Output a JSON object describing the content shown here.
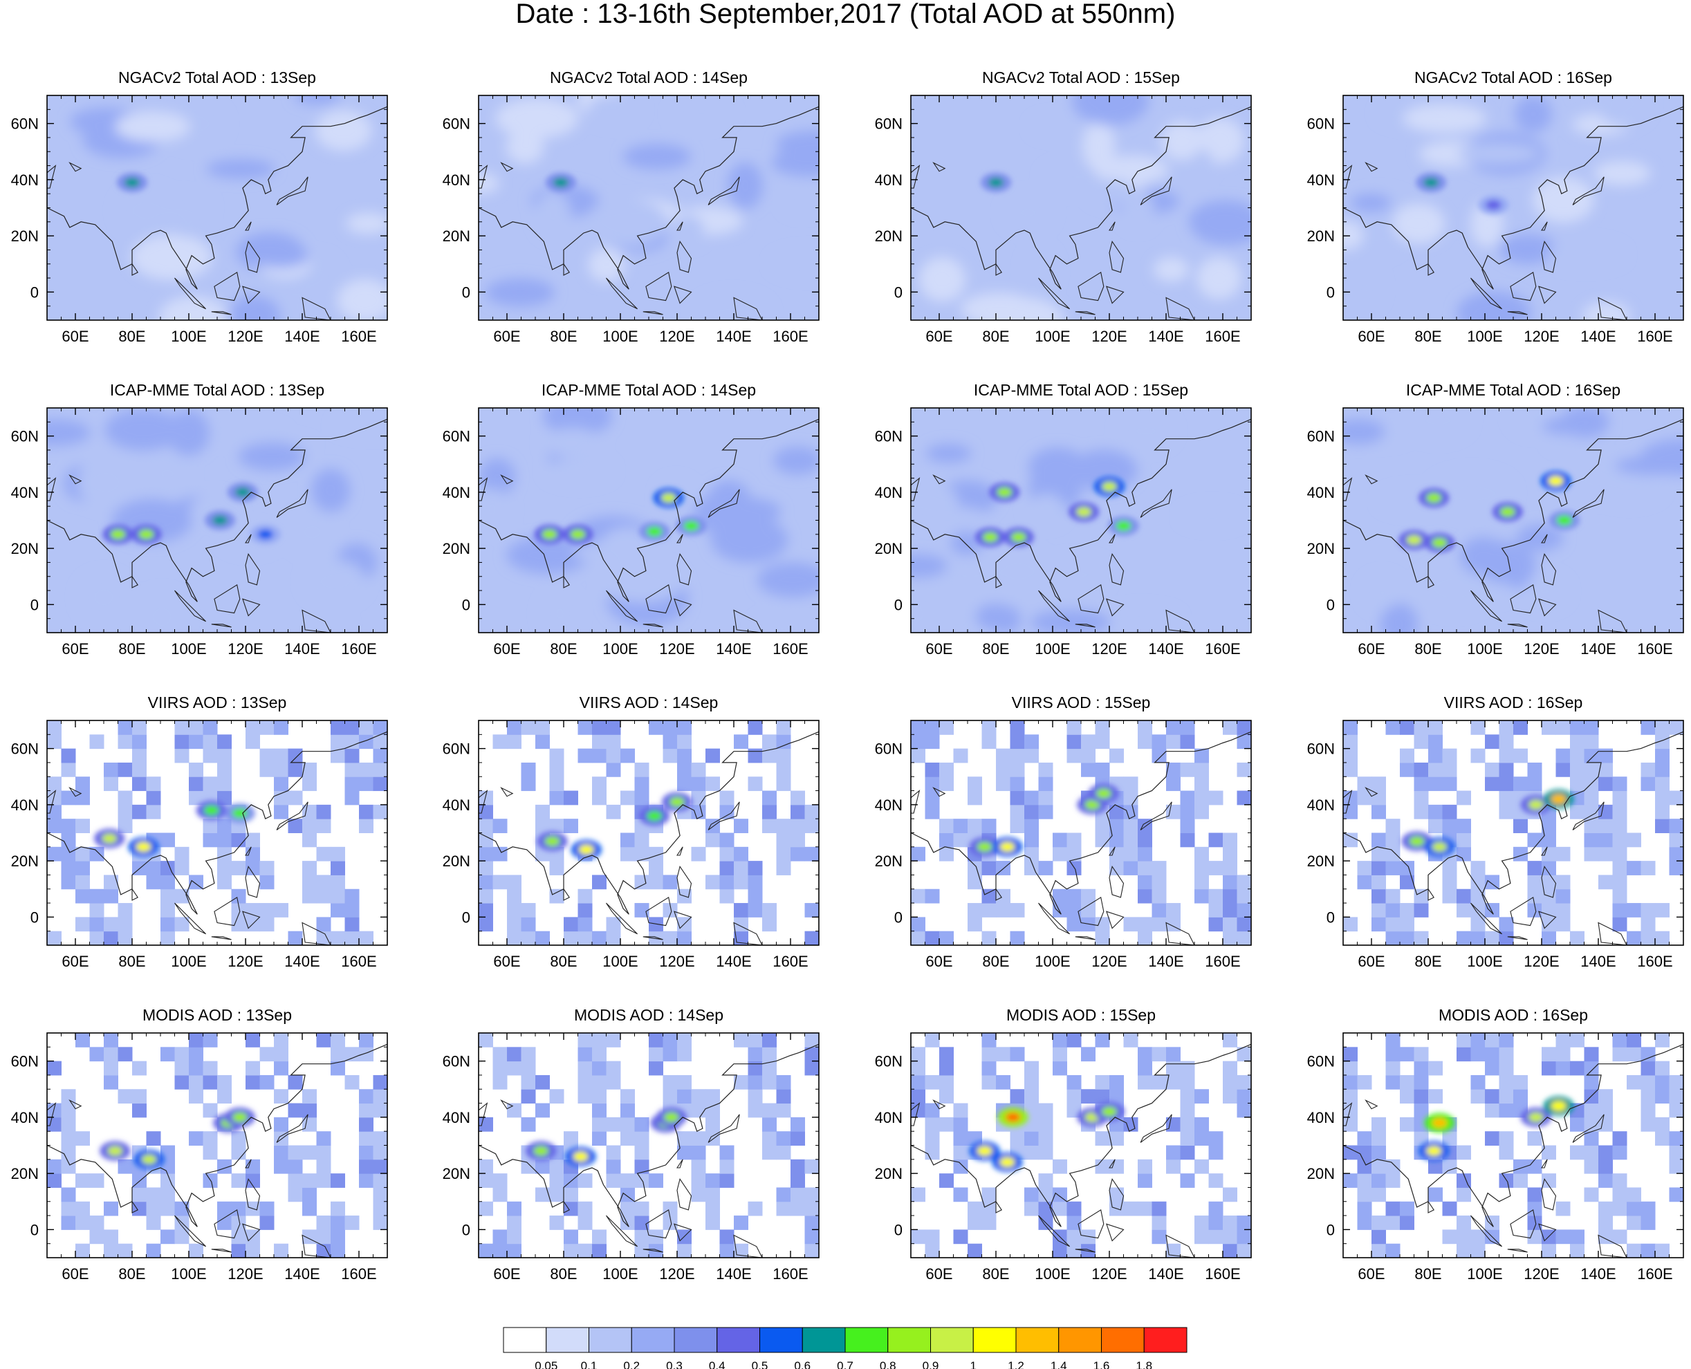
{
  "page": {
    "title": "Date : 13-16th September,2017 (Total AOD at 550nm)"
  },
  "chart_data": {
    "type": "heatmap",
    "title": "Date : 13-16th September,2017 (Total AOD at 550nm)",
    "rows": [
      "NGACv2",
      "ICAP-MME",
      "VIIRS",
      "MODIS"
    ],
    "columns": [
      "13Sep",
      "14Sep",
      "15Sep",
      "16Sep"
    ],
    "panels": [
      [
        "NGACv2 Total AOD : 13Sep",
        "NGACv2 Total AOD : 14Sep",
        "NGACv2 Total AOD : 15Sep",
        "NGACv2 Total AOD : 16Sep"
      ],
      [
        "ICAP-MME Total AOD : 13Sep",
        "ICAP-MME Total AOD : 14Sep",
        "ICAP-MME Total AOD : 15Sep",
        "ICAP-MME Total AOD : 16Sep"
      ],
      [
        "VIIRS AOD : 13Sep",
        "VIIRS AOD : 14Sep",
        "VIIRS AOD : 15Sep",
        "VIIRS AOD : 16Sep"
      ],
      [
        "MODIS AOD : 13Sep",
        "MODIS AOD : 14Sep",
        "MODIS AOD : 15Sep",
        "MODIS AOD : 16Sep"
      ]
    ],
    "x_range": [
      50,
      170
    ],
    "y_range": [
      -10,
      70
    ],
    "x_ticks": [
      "60E",
      "80E",
      "100E",
      "120E",
      "140E",
      "160E"
    ],
    "x_tick_values": [
      60,
      80,
      100,
      120,
      140,
      160
    ],
    "y_ticks": [
      "0",
      "20N",
      "40N",
      "60N"
    ],
    "y_tick_values": [
      0,
      20,
      40,
      60
    ],
    "colorbar": {
      "levels": [
        "0.05",
        "0.1",
        "0.2",
        "0.3",
        "0.4",
        "0.5",
        "0.6",
        "0.7",
        "0.8",
        "0.9",
        "1",
        "1.2",
        "1.4",
        "1.6",
        "1.8"
      ],
      "colors": [
        "#ffffff",
        "#d2dcfa",
        "#b4c4f6",
        "#96aaf4",
        "#7e90ec",
        "#6464e6",
        "#0a5af0",
        "#009696",
        "#46f01e",
        "#96f01e",
        "#c8f046",
        "#ffff00",
        "#ffbe00",
        "#ff9600",
        "#ff6e00",
        "#ff1e1e"
      ]
    },
    "hotspots": [
      [
        [
          [
            80,
            39,
            0.6
          ]
        ],
        [
          [
            79,
            39,
            0.6
          ]
        ],
        [
          [
            80,
            39,
            0.6
          ]
        ],
        [
          [
            81,
            39,
            0.6
          ],
          [
            103,
            31,
            0.45
          ]
        ]
      ],
      [
        [
          [
            75,
            25,
            0.85
          ],
          [
            85,
            25,
            0.8
          ],
          [
            111,
            30,
            0.6
          ],
          [
            119,
            40,
            0.6
          ],
          [
            127,
            25,
            0.5
          ]
        ],
        [
          [
            75,
            25,
            0.85
          ],
          [
            85,
            25,
            0.8
          ],
          [
            117,
            38,
            0.95
          ],
          [
            112,
            26,
            0.7
          ],
          [
            125,
            28,
            0.7
          ]
        ],
        [
          [
            78,
            24,
            0.85
          ],
          [
            88,
            24,
            0.8
          ],
          [
            111,
            33,
            0.9
          ],
          [
            120,
            42,
            0.95
          ],
          [
            125,
            28,
            0.7
          ],
          [
            83,
            40,
            0.85
          ]
        ],
        [
          [
            75,
            23,
            0.9
          ],
          [
            84,
            22,
            0.85
          ],
          [
            108,
            33,
            0.85
          ],
          [
            125,
            44,
            1.05
          ],
          [
            82,
            38,
            0.8
          ],
          [
            128,
            30,
            0.7
          ]
        ]
      ],
      [
        [
          [
            72,
            28,
            0.9
          ],
          [
            84,
            25,
            1.05
          ],
          [
            108,
            38,
            0.75
          ],
          [
            118,
            37,
            0.7
          ]
        ],
        [
          [
            76,
            27,
            0.85
          ],
          [
            88,
            24,
            1.0
          ],
          [
            112,
            36,
            0.75
          ],
          [
            120,
            41,
            0.8
          ]
        ],
        [
          [
            76,
            25,
            0.8
          ],
          [
            84,
            25,
            1.05
          ],
          [
            114,
            40,
            0.85
          ],
          [
            118,
            44,
            0.8
          ]
        ],
        [
          [
            76,
            27,
            0.85
          ],
          [
            84,
            25,
            0.95
          ],
          [
            118,
            40,
            0.9
          ],
          [
            126,
            42,
            1.2
          ]
        ]
      ],
      [
        [
          [
            74,
            28,
            0.9
          ],
          [
            86,
            25,
            0.95
          ],
          [
            114,
            38,
            0.8
          ],
          [
            118,
            40,
            0.85
          ]
        ],
        [
          [
            72,
            28,
            0.85
          ],
          [
            86,
            26,
            1.0
          ],
          [
            116,
            38,
            0.85
          ],
          [
            118,
            40,
            0.85
          ]
        ],
        [
          [
            76,
            28,
            1.05
          ],
          [
            84,
            24,
            1.0
          ],
          [
            86,
            40,
            1.6
          ],
          [
            114,
            40,
            0.9
          ],
          [
            120,
            42,
            0.85
          ]
        ],
        [
          [
            82,
            28,
            1.0
          ],
          [
            84,
            38,
            1.3
          ],
          [
            118,
            40,
            0.9
          ],
          [
            126,
            44,
            1.1
          ]
        ]
      ]
    ]
  }
}
